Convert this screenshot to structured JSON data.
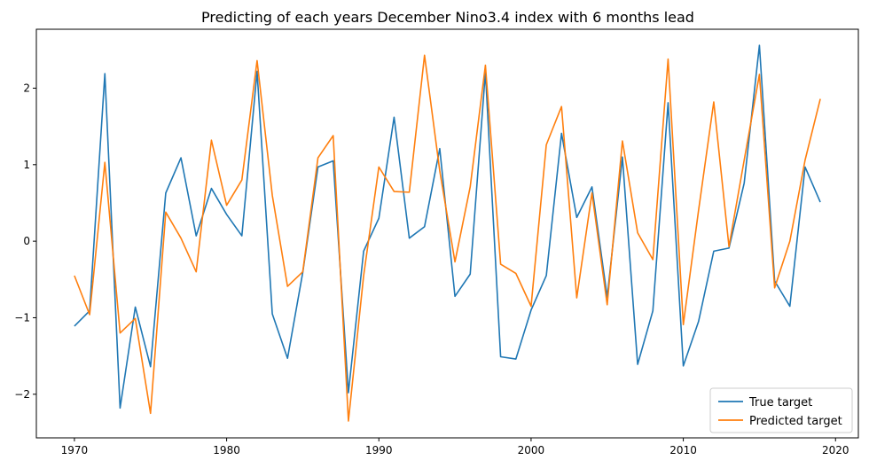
{
  "chart_data": {
    "type": "line",
    "title": "Predicting of each years December Nino3.4 index with 6 months lead",
    "xlabel": "",
    "ylabel": "",
    "xlim": [
      1967.5,
      2021.5
    ],
    "ylim": [
      -2.57,
      2.77
    ],
    "xticks": [
      1970,
      1980,
      1990,
      2000,
      2010,
      2020
    ],
    "yticks": [
      -2,
      -1,
      0,
      1,
      2
    ],
    "grid": false,
    "legend_position": "lower-right",
    "x": [
      1970,
      1971,
      1972,
      1973,
      1974,
      1975,
      1976,
      1977,
      1978,
      1979,
      1980,
      1981,
      1982,
      1983,
      1984,
      1985,
      1986,
      1987,
      1988,
      1989,
      1990,
      1991,
      1992,
      1993,
      1994,
      1995,
      1996,
      1997,
      1998,
      1999,
      2000,
      2001,
      2002,
      2003,
      2004,
      2005,
      2006,
      2007,
      2008,
      2009,
      2010,
      2011,
      2012,
      2013,
      2014,
      2015,
      2016,
      2017,
      2018,
      2019
    ],
    "series": [
      {
        "name": "True target",
        "color": "#1f77b4",
        "values": [
          -1.11,
          -0.91,
          2.19,
          -2.18,
          -0.86,
          -1.64,
          0.63,
          1.09,
          0.07,
          0.69,
          0.35,
          0.07,
          2.22,
          -0.95,
          -1.53,
          -0.41,
          0.97,
          1.05,
          -1.98,
          -0.13,
          0.3,
          1.62,
          0.04,
          0.19,
          1.21,
          -0.72,
          -0.43,
          2.21,
          -1.51,
          -1.54,
          -0.9,
          -0.45,
          1.41,
          0.31,
          0.71,
          -0.73,
          1.1,
          -1.61,
          -0.91,
          1.81,
          -1.63,
          -1.05,
          -0.13,
          -0.09,
          0.76,
          2.56,
          -0.52,
          -0.85,
          0.97,
          0.51
        ]
      },
      {
        "name": "Predicted target",
        "color": "#ff7f0e",
        "values": [
          -0.45,
          -0.96,
          1.03,
          -1.2,
          -1.01,
          -2.25,
          0.38,
          0.04,
          -0.4,
          1.32,
          0.47,
          0.8,
          2.36,
          0.6,
          -0.59,
          -0.4,
          1.09,
          1.38,
          -2.35,
          -0.45,
          0.97,
          0.65,
          0.64,
          2.43,
          0.92,
          -0.27,
          0.71,
          2.3,
          -0.3,
          -0.42,
          -0.85,
          1.26,
          1.76,
          -0.74,
          0.63,
          -0.83,
          1.31,
          0.11,
          -0.24,
          2.38,
          -1.09,
          0.4,
          1.82,
          -0.07,
          1.06,
          2.18,
          -0.61,
          0.0,
          1.06,
          1.86
        ]
      }
    ]
  }
}
